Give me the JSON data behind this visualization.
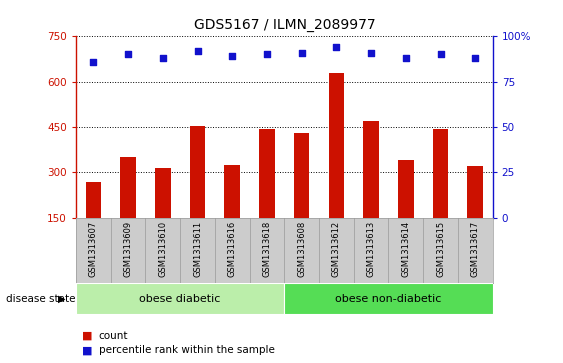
{
  "title": "GDS5167 / ILMN_2089977",
  "samples": [
    "GSM1313607",
    "GSM1313609",
    "GSM1313610",
    "GSM1313611",
    "GSM1313616",
    "GSM1313618",
    "GSM1313608",
    "GSM1313612",
    "GSM1313613",
    "GSM1313614",
    "GSM1313615",
    "GSM1313617"
  ],
  "counts": [
    270,
    350,
    315,
    455,
    325,
    445,
    430,
    630,
    470,
    340,
    445,
    320
  ],
  "percentile_ranks": [
    86,
    90,
    88,
    92,
    89,
    90,
    91,
    94,
    91,
    88,
    90,
    88
  ],
  "bar_color": "#cc1100",
  "dot_color": "#1111cc",
  "ylim_left": [
    150,
    750
  ],
  "ylim_right": [
    0,
    100
  ],
  "yticks_left": [
    150,
    300,
    450,
    600,
    750
  ],
  "yticks_right": [
    0,
    25,
    50,
    75,
    100
  ],
  "groups": [
    {
      "label": "obese diabetic",
      "start": 0,
      "end": 6,
      "color": "#bbeeaa"
    },
    {
      "label": "obese non-diabetic",
      "start": 6,
      "end": 12,
      "color": "#55dd55"
    }
  ],
  "disease_state_label": "disease state",
  "legend_count_label": "count",
  "legend_percentile_label": "percentile rank within the sample",
  "tick_area_color": "#cccccc",
  "tick_border_color": "#999999"
}
